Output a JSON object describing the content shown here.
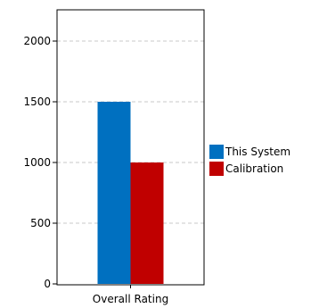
{
  "chart_data": {
    "type": "bar",
    "categories": [
      "Overall Rating"
    ],
    "series": [
      {
        "name": "This System",
        "values": [
          1500
        ],
        "color": "#0070c0"
      },
      {
        "name": "Calibration",
        "values": [
          1000
        ],
        "color": "#c00000"
      }
    ],
    "ylim": [
      0,
      2200
    ],
    "yticks": [
      0,
      500,
      1000,
      1500,
      2000
    ],
    "grid": true,
    "grid_style": "dashed",
    "legend_position": "right"
  }
}
